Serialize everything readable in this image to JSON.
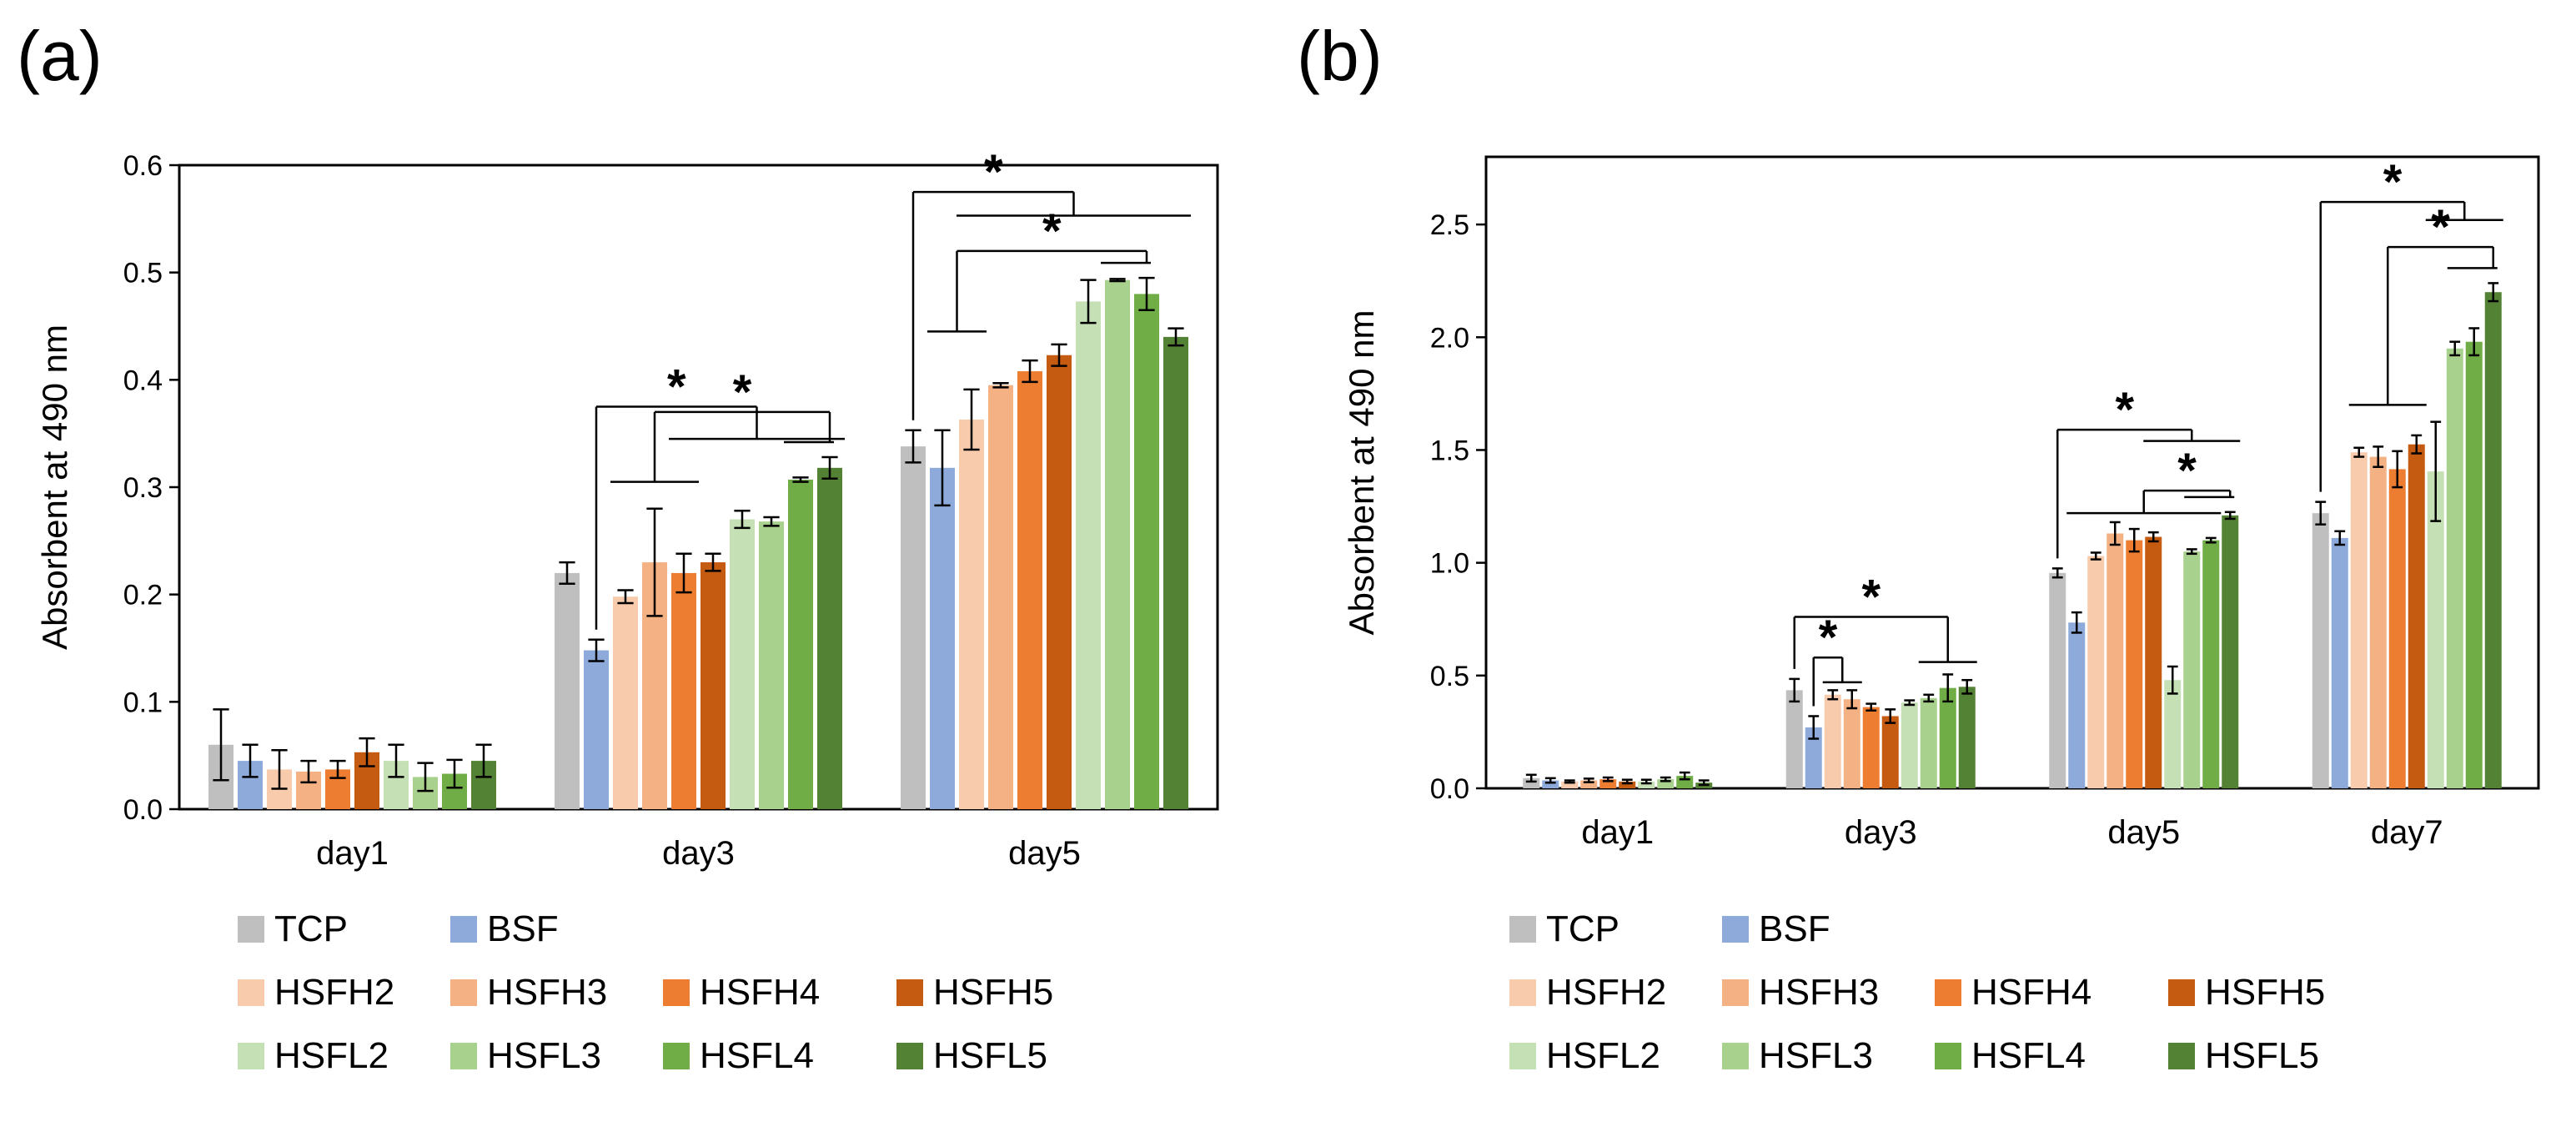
{
  "colors": {
    "TCP": "#bfbfbf",
    "BSF": "#8eaadb",
    "HSFH2": "#f8cbad",
    "HSFH3": "#f4b183",
    "HSFH4": "#ed7d31",
    "HSFH5": "#c55a11",
    "HSFL2": "#c5e0b4",
    "HSFL3": "#a9d18e",
    "HSFL4": "#70ad47",
    "HSFL5": "#548235",
    "axis": "#000000"
  },
  "legend_rows": [
    [
      "TCP",
      "BSF"
    ],
    [
      "HSFH2",
      "HSFH3",
      "HSFH4",
      "HSFH5"
    ],
    [
      "HSFL2",
      "HSFL3",
      "HSFL4",
      "HSFL5"
    ]
  ],
  "significance_marker": "*",
  "chart_data": [
    {
      "panel_label": "(a)",
      "type": "bar",
      "ylabel": "Absorbent at 490 nm",
      "xlabel": "",
      "ylim": [
        0,
        0.6
      ],
      "yticks": [
        "0.0",
        "0.1",
        "0.2",
        "0.3",
        "0.4",
        "0.5",
        "0.6"
      ],
      "ytick_values": [
        0,
        0.1,
        0.2,
        0.3,
        0.4,
        0.5,
        0.6
      ],
      "categories": [
        "day1",
        "day3",
        "day5"
      ],
      "series": [
        {
          "name": "TCP",
          "values": [
            0.06,
            0.22,
            0.338
          ],
          "errors": [
            0.033,
            0.01,
            0.015
          ]
        },
        {
          "name": "BSF",
          "values": [
            0.045,
            0.148,
            0.318
          ],
          "errors": [
            0.015,
            0.01,
            0.035
          ]
        },
        {
          "name": "HSFH2",
          "values": [
            0.037,
            0.198,
            0.363
          ],
          "errors": [
            0.018,
            0.006,
            0.028
          ]
        },
        {
          "name": "HSFH3",
          "values": [
            0.035,
            0.23,
            0.395
          ],
          "errors": [
            0.01,
            0.05,
            0.002
          ]
        },
        {
          "name": "HSFH4",
          "values": [
            0.037,
            0.22,
            0.408
          ],
          "errors": [
            0.008,
            0.018,
            0.01
          ]
        },
        {
          "name": "HSFH5",
          "values": [
            0.053,
            0.23,
            0.423
          ],
          "errors": [
            0.013,
            0.008,
            0.01
          ]
        },
        {
          "name": "HSFL2",
          "values": [
            0.045,
            0.27,
            0.473
          ],
          "errors": [
            0.015,
            0.008,
            0.02
          ]
        },
        {
          "name": "HSFL3",
          "values": [
            0.03,
            0.268,
            0.493
          ],
          "errors": [
            0.013,
            0.004,
            0.001
          ]
        },
        {
          "name": "HSFL4",
          "values": [
            0.033,
            0.307,
            0.48
          ],
          "errors": [
            0.013,
            0.002,
            0.015
          ]
        },
        {
          "name": "HSFL5",
          "values": [
            0.045,
            0.318,
            0.44
          ],
          "errors": [
            0.015,
            0.01,
            0.008
          ]
        }
      ],
      "significance": [
        {
          "category": "day3",
          "from": "BSF",
          "to_range": [
            "HSFH4",
            "HSFL5"
          ],
          "bracket_y": 0.375,
          "range_y": 0.345,
          "label": "*"
        },
        {
          "category": "day3",
          "from_range": [
            "HSFH2",
            "HSFH4"
          ],
          "to": "HSFL5",
          "bracket_y": 0.37,
          "range_y": 0.305,
          "label": "*"
        },
        {
          "category": "day5",
          "from": "TCP",
          "to_range": [
            "HSFH2",
            "HSFL5"
          ],
          "bracket_y": 0.575,
          "range_y": 0.553,
          "label": "*"
        },
        {
          "category": "day5",
          "from_range": [
            "BSF",
            "HSFH2"
          ],
          "to": "HSFL4",
          "bracket_y": 0.52,
          "range_y": 0.445,
          "label": "*"
        }
      ]
    },
    {
      "panel_label": "(b)",
      "type": "bar",
      "ylabel": "Absorbent at 490 nm",
      "xlabel": "",
      "ylim": [
        0,
        2.8
      ],
      "yticks": [
        "0.0",
        "0.5",
        "1.0",
        "1.5",
        "2.0",
        "2.5"
      ],
      "ytick_values": [
        0,
        0.5,
        1.0,
        1.5,
        2.0,
        2.5
      ],
      "categories": [
        "day1",
        "day3",
        "day5",
        "day7"
      ],
      "series": [
        {
          "name": "TCP",
          "values": [
            0.045,
            0.435,
            0.955,
            1.22
          ],
          "errors": [
            0.015,
            0.05,
            0.02,
            0.05
          ]
        },
        {
          "name": "BSF",
          "values": [
            0.035,
            0.27,
            0.735,
            1.11
          ],
          "errors": [
            0.01,
            0.05,
            0.045,
            0.03
          ]
        },
        {
          "name": "HSFH2",
          "values": [
            0.03,
            0.415,
            1.03,
            1.49
          ],
          "errors": [
            0.005,
            0.02,
            0.015,
            0.02
          ]
        },
        {
          "name": "HSFH3",
          "values": [
            0.035,
            0.395,
            1.13,
            1.47
          ],
          "errors": [
            0.008,
            0.04,
            0.05,
            0.045
          ]
        },
        {
          "name": "HSFH4",
          "values": [
            0.04,
            0.36,
            1.1,
            1.415
          ],
          "errors": [
            0.008,
            0.015,
            0.05,
            0.08
          ]
        },
        {
          "name": "HSFH5",
          "values": [
            0.03,
            0.32,
            1.115,
            1.525
          ],
          "errors": [
            0.008,
            0.03,
            0.02,
            0.04
          ]
        },
        {
          "name": "HSFL2",
          "values": [
            0.03,
            0.38,
            0.48,
            1.405
          ],
          "errors": [
            0.008,
            0.01,
            0.06,
            0.22
          ]
        },
        {
          "name": "HSFL3",
          "values": [
            0.04,
            0.4,
            1.05,
            1.95
          ],
          "errors": [
            0.008,
            0.015,
            0.01,
            0.03
          ]
        },
        {
          "name": "HSFL4",
          "values": [
            0.055,
            0.445,
            1.1,
            1.98
          ],
          "errors": [
            0.015,
            0.06,
            0.01,
            0.06
          ]
        },
        {
          "name": "HSFL5",
          "values": [
            0.025,
            0.45,
            1.21,
            2.2
          ],
          "errors": [
            0.01,
            0.03,
            0.015,
            0.04
          ]
        }
      ],
      "significance": [
        {
          "category": "day3",
          "from": "TCP",
          "to_range": [
            "HSFL3",
            "HSFL5"
          ],
          "bracket_y": 0.76,
          "range_y": 0.56,
          "label": "*"
        },
        {
          "category": "day3",
          "from": "BSF",
          "to_range": [
            "HSFH2",
            "HSFH3"
          ],
          "bracket_y": 0.58,
          "range_y": 0.47,
          "label": "*"
        },
        {
          "category": "day5",
          "from": "TCP",
          "to_range": [
            "HSFH5",
            "HSFL5"
          ],
          "bracket_y": 1.59,
          "range_y": 1.54,
          "label": "*"
        },
        {
          "category": "day5",
          "from_range": [
            "BSF",
            "HSFL4"
          ],
          "to": "HSFL5",
          "bracket_y": 1.32,
          "range_y": 1.22,
          "label": "*"
        },
        {
          "category": "day7",
          "from": "TCP",
          "to_range": [
            "HSFL2",
            "HSFL5"
          ],
          "bracket_y": 2.6,
          "range_y": 2.52,
          "label": "*"
        },
        {
          "category": "day7",
          "from_range": [
            "HSFH2",
            "HSFH5"
          ],
          "to": "HSFL5",
          "bracket_y": 2.4,
          "range_y": 1.7,
          "label": "*"
        }
      ]
    }
  ]
}
